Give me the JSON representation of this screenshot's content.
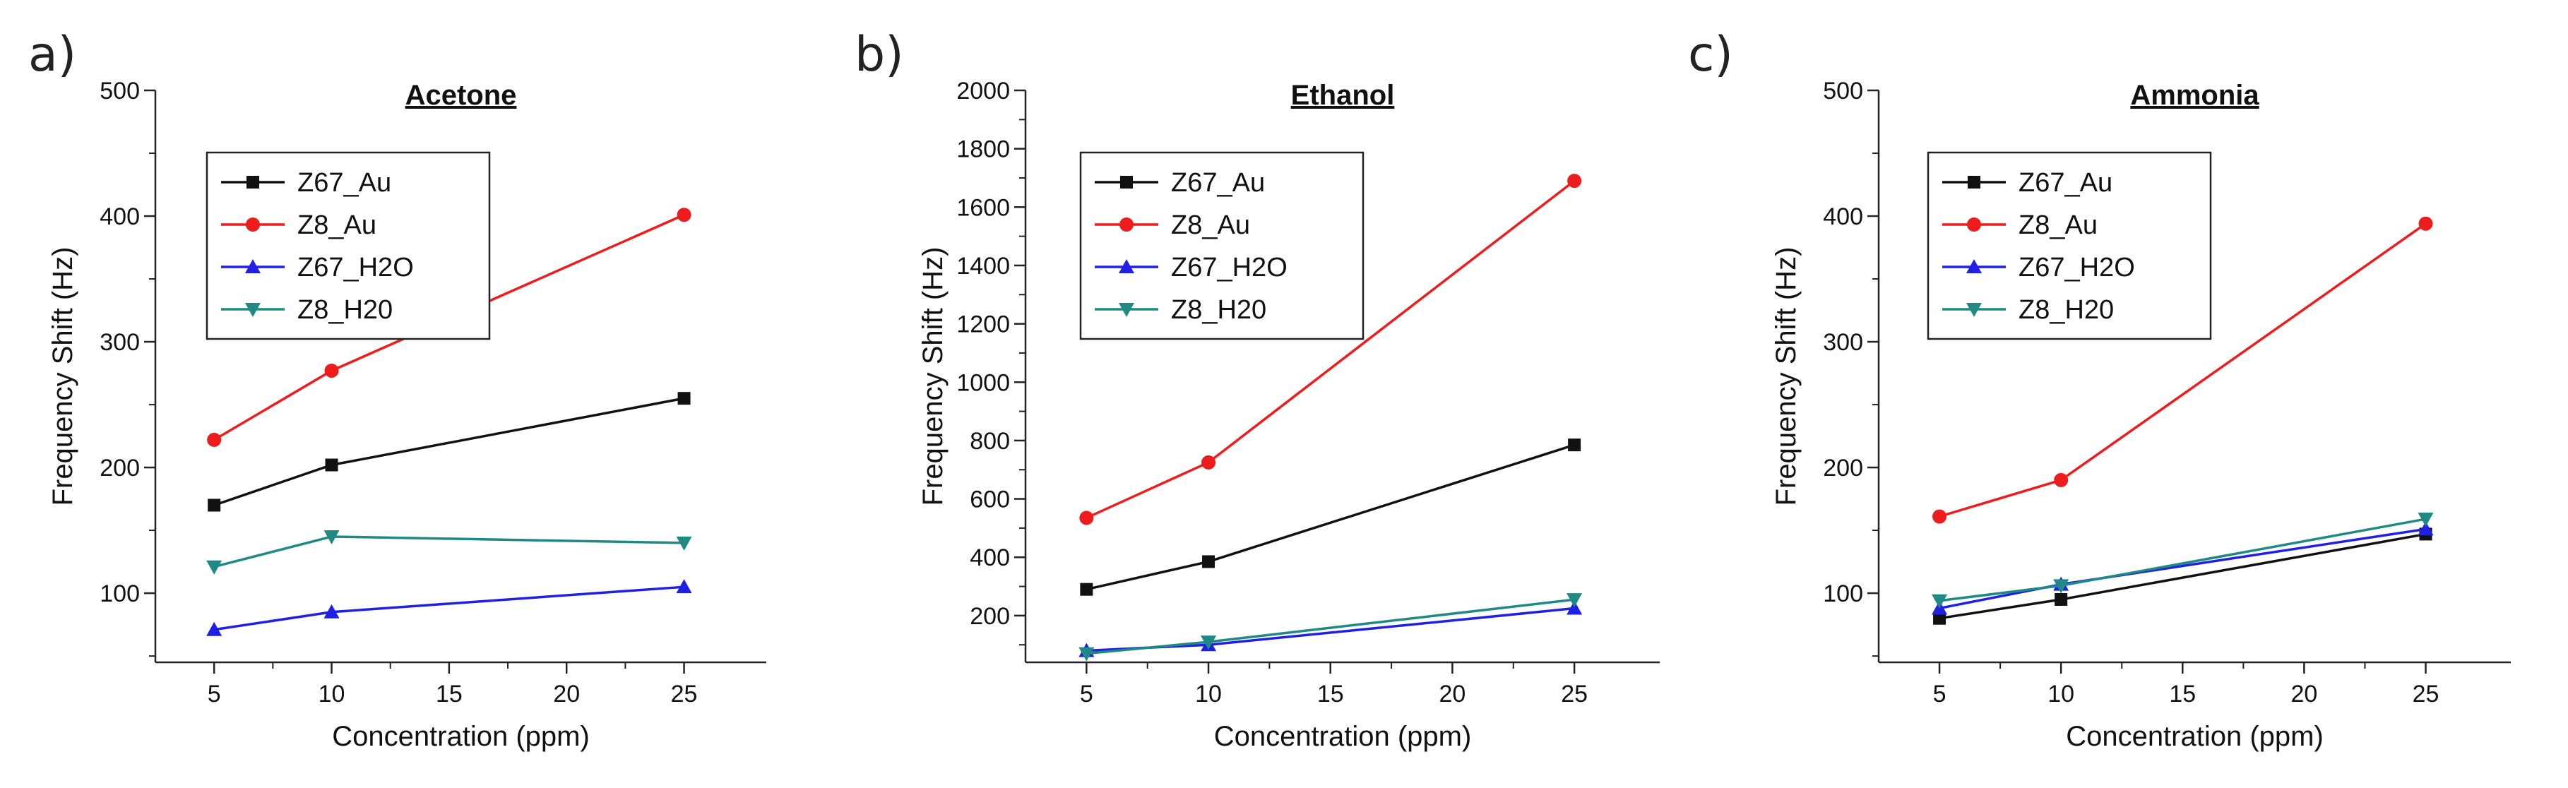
{
  "chart_data": [
    {
      "type": "line",
      "panel": "a)",
      "title": "Acetone",
      "xlabel": "Concentration (ppm)",
      "ylabel": "Frequency Shift (Hz)",
      "xlim": [
        2.5,
        28.5
      ],
      "ylim": [
        45,
        500
      ],
      "xticks": [
        5,
        10,
        15,
        20,
        25
      ],
      "yticks": [
        100,
        200,
        300,
        400,
        500
      ],
      "x": [
        5,
        10,
        25
      ],
      "legend_position": "top-left",
      "series": [
        {
          "name": "Z67_Au",
          "color": "#111111",
          "marker": "square",
          "values": [
            170,
            202,
            255
          ]
        },
        {
          "name": "Z8_Au",
          "color": "#ee1c1c",
          "marker": "circle",
          "values": [
            222,
            277,
            401
          ]
        },
        {
          "name": "Z67_H2O",
          "color": "#1f1fe6",
          "marker": "triangle-up",
          "values": [
            71,
            85,
            105
          ]
        },
        {
          "name": "Z8_H20",
          "color": "#1f8a84",
          "marker": "triangle-down",
          "values": [
            121,
            145,
            140
          ]
        }
      ]
    },
    {
      "type": "line",
      "panel": "b)",
      "title": "Ethanol",
      "xlabel": "Concentration (ppm)",
      "ylabel": "Frequency Shift (Hz)",
      "xlim": [
        2.5,
        28.5
      ],
      "ylim": [
        40,
        2000
      ],
      "xticks": [
        5,
        10,
        15,
        20,
        25
      ],
      "yticks": [
        200,
        400,
        600,
        800,
        1000,
        1200,
        1400,
        1600,
        1800,
        2000
      ],
      "x": [
        5,
        10,
        25
      ],
      "legend_position": "top-left",
      "series": [
        {
          "name": "Z67_Au",
          "color": "#111111",
          "marker": "square",
          "values": [
            290,
            385,
            785
          ]
        },
        {
          "name": "Z8_Au",
          "color": "#ee1c1c",
          "marker": "circle",
          "values": [
            535,
            725,
            1690
          ]
        },
        {
          "name": "Z67_H2O",
          "color": "#1f1fe6",
          "marker": "triangle-up",
          "values": [
            80,
            100,
            225
          ]
        },
        {
          "name": "Z8_H20",
          "color": "#1f8a84",
          "marker": "triangle-down",
          "values": [
            70,
            110,
            255
          ]
        }
      ]
    },
    {
      "type": "line",
      "panel": "c)",
      "title": "Ammonia",
      "xlabel": "Concentration (ppm)",
      "ylabel": "Frequency Shift (Hz)",
      "xlim": [
        2.5,
        28.5
      ],
      "ylim": [
        45,
        500
      ],
      "xticks": [
        5,
        10,
        15,
        20,
        25
      ],
      "yticks": [
        100,
        200,
        300,
        400,
        500
      ],
      "x": [
        5,
        10,
        25
      ],
      "legend_position": "top-left",
      "series": [
        {
          "name": "Z67_Au",
          "color": "#111111",
          "marker": "square",
          "values": [
            80,
            95,
            147
          ]
        },
        {
          "name": "Z8_Au",
          "color": "#ee1c1c",
          "marker": "circle",
          "values": [
            161,
            190,
            394
          ]
        },
        {
          "name": "Z67_H2O",
          "color": "#1f1fe6",
          "marker": "triangle-up",
          "values": [
            88,
            107,
            151
          ]
        },
        {
          "name": "Z8_H20",
          "color": "#1f8a84",
          "marker": "triangle-down",
          "values": [
            94,
            106,
            159
          ]
        }
      ]
    }
  ]
}
